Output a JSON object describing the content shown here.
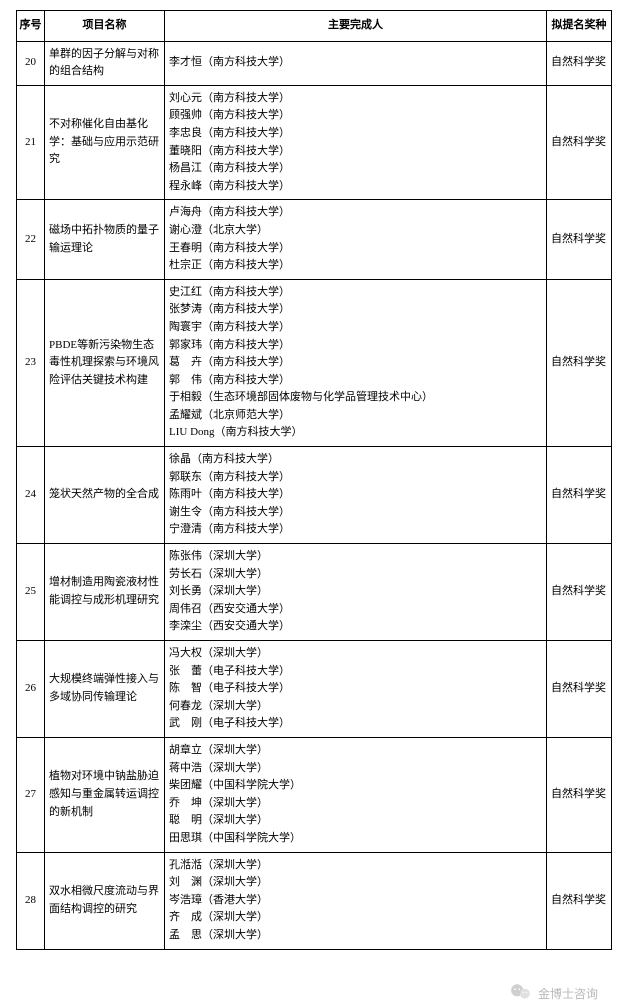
{
  "headers": {
    "seq": "序号",
    "name": "项目名称",
    "people": "主要完成人",
    "award": "拟提名奖种"
  },
  "rows": [
    {
      "seq": "20",
      "name": "单群的因子分解与对称的组合结构",
      "people": [
        "李才恒（南方科技大学）"
      ],
      "award": "自然科学奖"
    },
    {
      "seq": "21",
      "name": "不对称催化自由基化学：基础与应用示范研究",
      "people": [
        "刘心元（南方科技大学）",
        "顾强帅（南方科技大学）",
        "李忠良（南方科技大学）",
        "董晓阳（南方科技大学）",
        "杨昌江（南方科技大学）",
        "程永峰（南方科技大学）"
      ],
      "award": "自然科学奖"
    },
    {
      "seq": "22",
      "name": "磁场中拓扑物质的量子输运理论",
      "people": [
        "卢海舟（南方科技大学）",
        "谢心澄（北京大学）",
        "王春明（南方科技大学）",
        "杜宗正（南方科技大学）"
      ],
      "award": "自然科学奖"
    },
    {
      "seq": "23",
      "name": "PBDE等新污染物生态毒性机理探索与环境风险评估关键技术构建",
      "people": [
        "史江红（南方科技大学）",
        "张梦涛（南方科技大学）",
        "陶寰宇（南方科技大学）",
        "郭家玮（南方科技大学）",
        "葛　卉（南方科技大学）",
        "郭　伟（南方科技大学）",
        "于相毅（生态环境部固体废物与化学品管理技术中心）",
        "孟耀斌（北京师范大学）",
        "LIU Dong（南方科技大学）"
      ],
      "award": "自然科学奖"
    },
    {
      "seq": "24",
      "name": "笼状天然产物的全合成",
      "people": [
        "徐晶（南方科技大学）",
        "郭联东（南方科技大学）",
        "陈雨叶（南方科技大学）",
        "谢生令（南方科技大学）",
        "宁澄清（南方科技大学）"
      ],
      "award": "自然科学奖"
    },
    {
      "seq": "25",
      "name": "增材制造用陶瓷液材性能调控与成形机理研究",
      "people": [
        "陈张伟（深圳大学）",
        "劳长石（深圳大学）",
        "刘长勇（深圳大学）",
        "周伟召（西安交通大学）",
        "李滦尘（西安交通大学）"
      ],
      "award": "自然科学奖"
    },
    {
      "seq": "26",
      "name": "大规模终端弹性接入与多域协同传输理论",
      "people": [
        "冯大权（深圳大学）",
        "张　蕾（电子科技大学）",
        "陈　智（电子科技大学）",
        "何春龙（深圳大学）",
        "武　刚（电子科技大学）"
      ],
      "award": "自然科学奖"
    },
    {
      "seq": "27",
      "name": "植物对环境中钠盐胁迫感知与重金属转运调控的新机制",
      "people": [
        "胡章立（深圳大学）",
        "蒋中浩（深圳大学）",
        "柴团耀（中国科学院大学）",
        "乔　坤（深圳大学）",
        "聪　明（深圳大学）",
        "田思琪（中国科学院大学）"
      ],
      "award": "自然科学奖"
    },
    {
      "seq": "28",
      "name": "双水相微尺度流动与界面结构调控的研究",
      "people": [
        "孔湉湉（深圳大学）",
        "刘　渊（深圳大学）",
        "岑浩璋（香港大学）",
        "齐　成（深圳大学）",
        "孟　思（深圳大学）"
      ],
      "award": "自然科学奖"
    }
  ],
  "footer": {
    "account": "金博士咨询"
  }
}
